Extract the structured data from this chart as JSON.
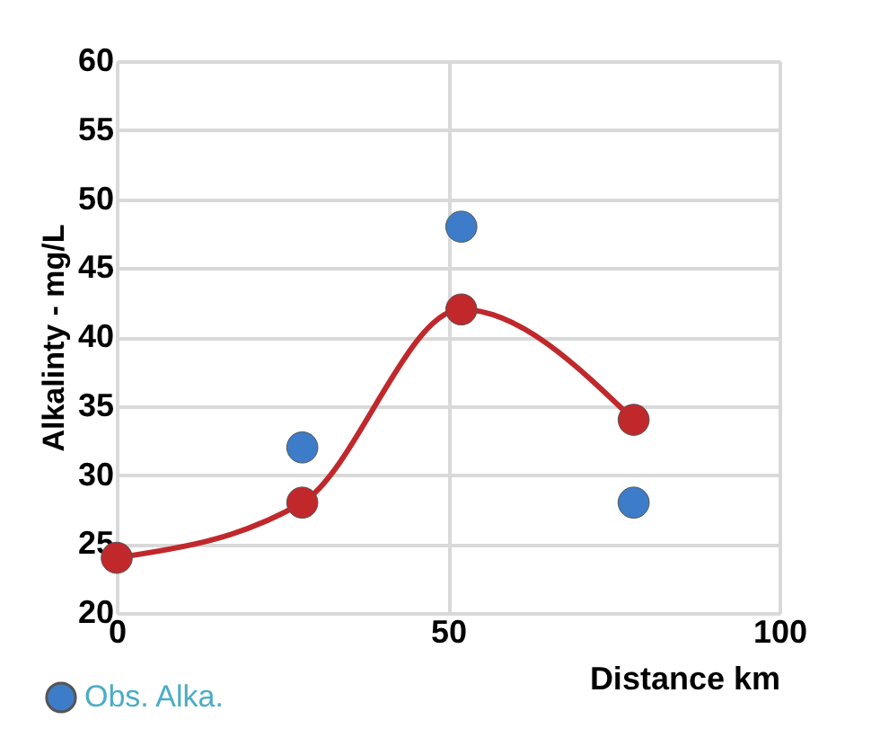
{
  "chart_data": {
    "type": "scatter",
    "xlabel": "Distance  km",
    "ylabel": "Alkalinty - mg/L",
    "xlim": [
      0,
      100
    ],
    "xticks": [
      0,
      50,
      100
    ],
    "ylim": [
      20,
      60
    ],
    "yticks": [
      20,
      25,
      30,
      35,
      40,
      45,
      50,
      55,
      60
    ],
    "grid": true,
    "legend": "bottom left",
    "marker": "circle",
    "series": [
      {
        "type": "line",
        "color": "#c0282b",
        "x": [
          0,
          28,
          52,
          78
        ],
        "values": [
          24,
          28,
          42,
          34
        ]
      },
      {
        "name": "Obs. Alka.",
        "color": "#3d7cc9",
        "x": [
          28,
          52,
          78
        ],
        "values": [
          32,
          48,
          28
        ]
      }
    ]
  }
}
